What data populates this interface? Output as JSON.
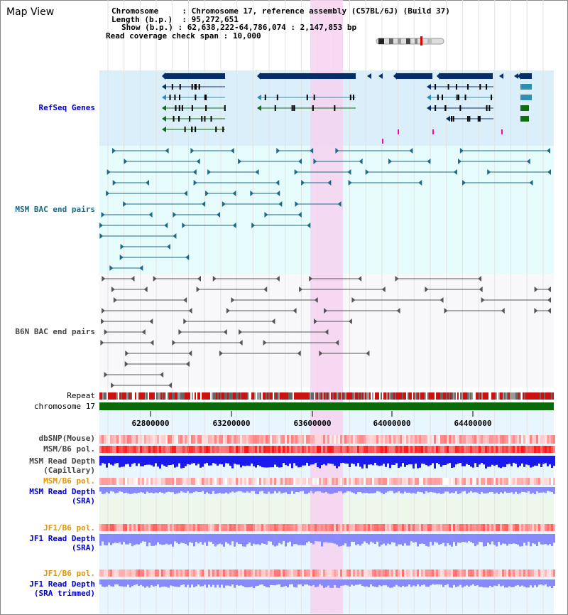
{
  "title": "Map View",
  "info": {
    "chromosome_label": "Chromosome",
    "chromosome_value": "Chromosome 17, reference assembly (C57BL/6J) (Build 37)",
    "length_label": "Length (b.p.)",
    "length_value": "95,272,651",
    "show_label": "Show (b.p.)",
    "show_value": "62,638,222-64,786,074 : 2,147,853 bp",
    "span_label": "Read coverage check span",
    "span_value": "10,000"
  },
  "tracks": {
    "refseq": "RefSeq Genes",
    "msm_bac": "MSM BAC end pairs",
    "b6n_bac": "B6N BAC end pairs",
    "repeat": "Repeat",
    "chromosome": "chromosome 17",
    "dbsnp": "dbSNP(Mouse)",
    "msm_b6_pol_1": "MSM/B6 pol.",
    "msm_depth_cap_1": "MSM Read Depth",
    "msm_depth_cap_2": "(Capillary)",
    "msm_b6_pol_2": "MSM/B6 pol.",
    "msm_depth_sra_1": "MSM Read Depth",
    "msm_depth_sra_2": "(SRA)",
    "jf1_b6_pol_1": "JF1/B6 pol.",
    "jf1_depth_sra_1": "JF1 Read Depth",
    "jf1_depth_sra_2": "(SRA)",
    "jf1_b6_pol_2": "JF1/B6 pol.",
    "jf1_depth_trim_1": "JF1 Read Depth",
    "jf1_depth_trim_2": "(SRA trimmed)"
  },
  "axis": {
    "ticks": [
      "62800000",
      "63200000",
      "63600000",
      "64000000",
      "64400000"
    ]
  },
  "colors": {
    "refseq_bg": "#dbeffa",
    "highlight": "#f6d2f0",
    "gene_dark": "#062f6a",
    "gene_teal": "#2e8fb0",
    "gene_green": "#0f6e0f",
    "msm_bg": "#e6fbfb",
    "msm_line": "#1a6a88",
    "b6n_line": "#555555",
    "chromosome": "#0a6a0a",
    "depth_blue": "#1a1aee",
    "depth_light": "#8888ff"
  }
}
